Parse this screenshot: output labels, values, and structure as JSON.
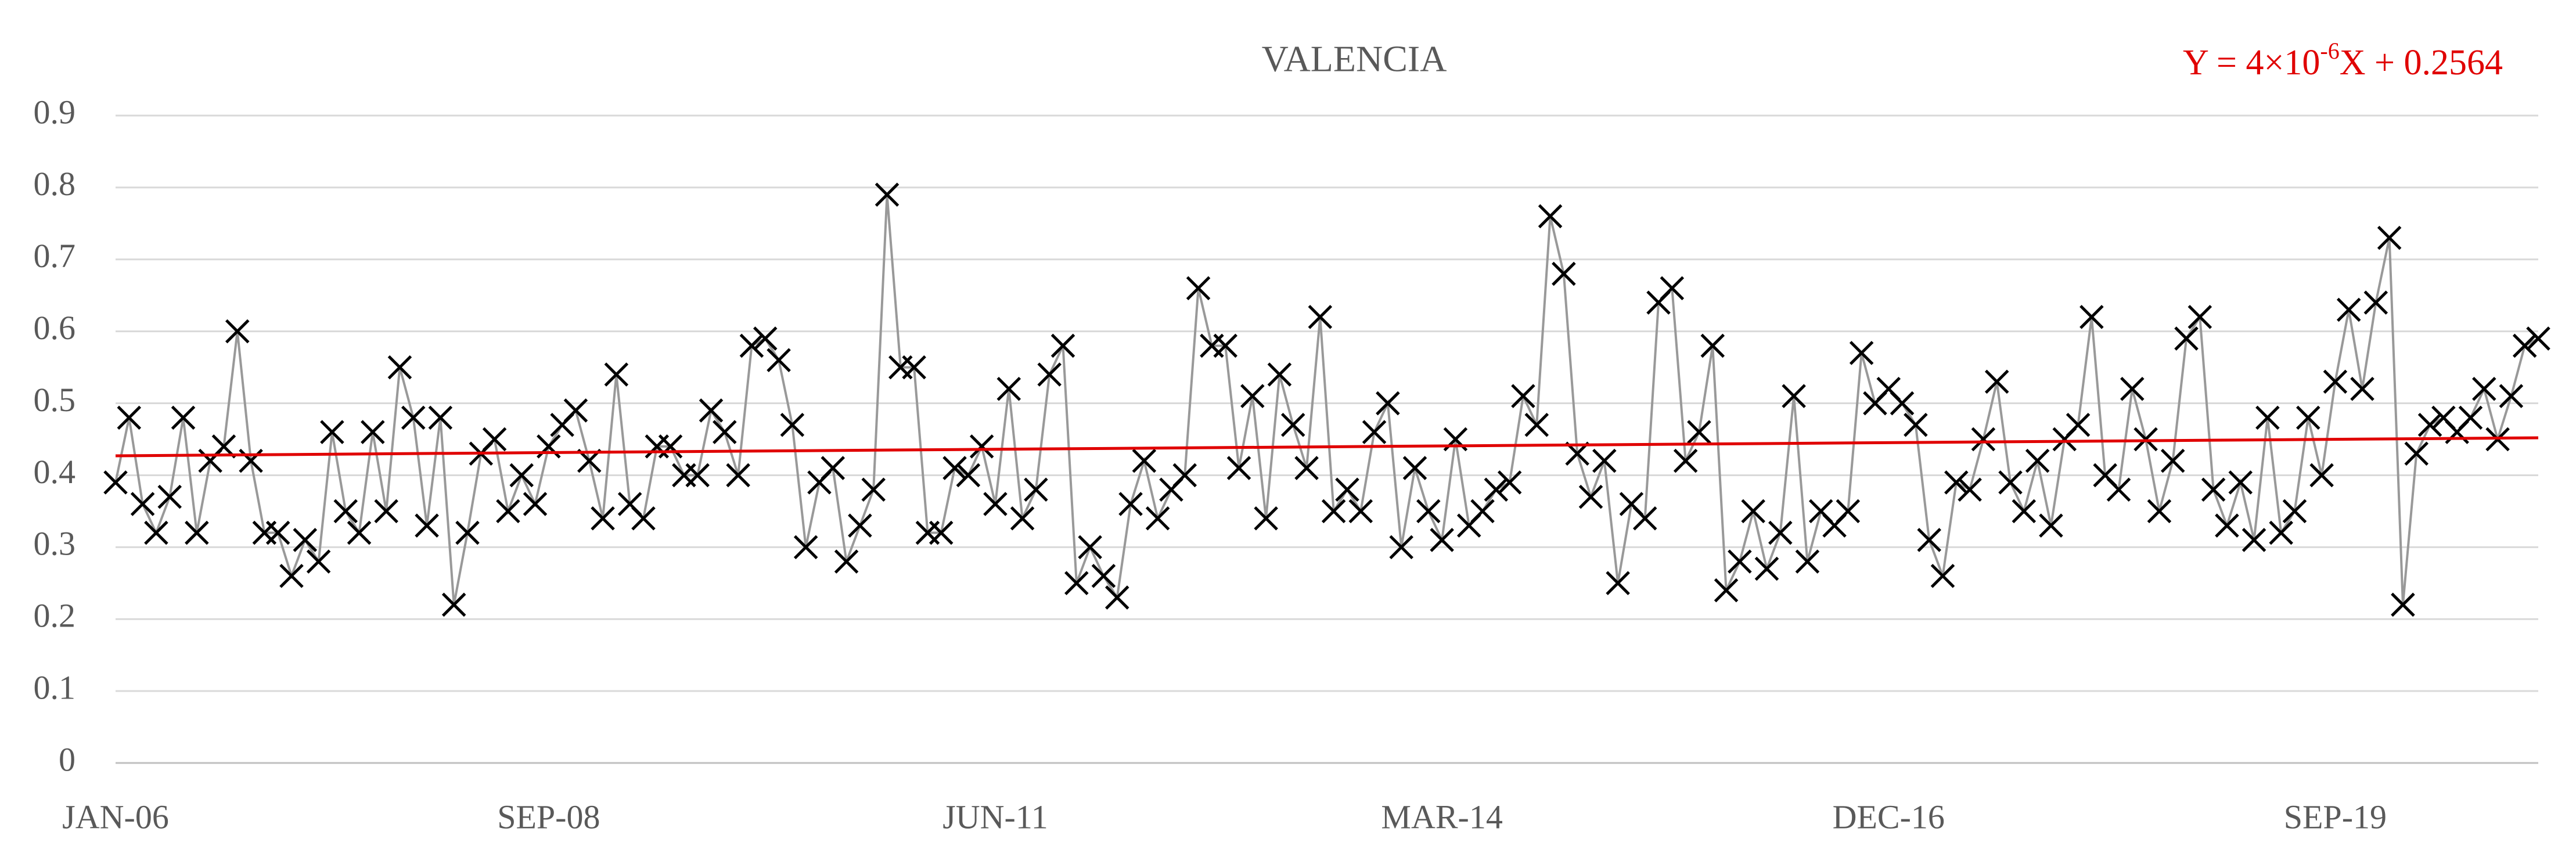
{
  "chart_data": {
    "type": "line",
    "title": "VALENCIA",
    "categories": [
      "JAN-06",
      null,
      null,
      null,
      null,
      null,
      null,
      null,
      null,
      null,
      null,
      null,
      null,
      null,
      null,
      null,
      null,
      null,
      null,
      null,
      null,
      null,
      null,
      null,
      null,
      null,
      null,
      null,
      null,
      null,
      null,
      null,
      "SEP-08",
      null,
      null,
      null,
      null,
      null,
      null,
      null,
      null,
      null,
      null,
      null,
      null,
      null,
      null,
      null,
      null,
      null,
      null,
      null,
      null,
      null,
      null,
      null,
      null,
      null,
      null,
      null,
      null,
      null,
      null,
      null,
      null,
      "JUN-11",
      null,
      null,
      null,
      null,
      null,
      null,
      null,
      null,
      null,
      null,
      null,
      null,
      null,
      null,
      null,
      null,
      null,
      null,
      null,
      null,
      null,
      null,
      null,
      null,
      null,
      null,
      null,
      null,
      null,
      null,
      null,
      null,
      "MAR-14",
      null,
      null,
      null,
      null,
      null,
      null,
      null,
      null,
      null,
      null,
      null,
      null,
      null,
      null,
      null,
      null,
      null,
      null,
      null,
      null,
      null,
      null,
      null,
      null,
      null,
      null,
      null,
      null,
      null,
      null,
      null,
      null,
      "DEC-16",
      null,
      null,
      null,
      null,
      null,
      null,
      null,
      null,
      null,
      null,
      null,
      null,
      null,
      null,
      null,
      null,
      null,
      null,
      null,
      null,
      null,
      null,
      null,
      null,
      null,
      null,
      null,
      null,
      null,
      null,
      null,
      null,
      "SEP-19",
      null,
      null,
      null,
      null,
      null,
      null,
      null,
      null,
      null,
      null,
      null,
      null,
      null,
      null,
      null
    ],
    "series": [
      {
        "color": "#999999",
        "marker_color": "#000000",
        "values": [
          0.39,
          0.48,
          0.36,
          0.32,
          0.37,
          0.48,
          0.32,
          0.42,
          0.44,
          0.6,
          0.42,
          0.32,
          0.32,
          0.26,
          0.31,
          0.28,
          0.46,
          0.35,
          0.32,
          0.46,
          0.35,
          0.55,
          0.48,
          0.33,
          0.48,
          0.22,
          0.32,
          0.43,
          0.45,
          0.35,
          0.4,
          0.36,
          0.44,
          0.47,
          0.49,
          0.42,
          0.34,
          0.54,
          0.36,
          0.34,
          0.44,
          0.44,
          0.4,
          0.4,
          0.49,
          0.46,
          0.4,
          0.58,
          0.59,
          0.56,
          0.47,
          0.3,
          0.39,
          0.41,
          0.28,
          0.33,
          0.38,
          0.79,
          0.55,
          0.55,
          0.32,
          0.32,
          0.41,
          0.4,
          0.44,
          0.36,
          0.52,
          0.34,
          0.38,
          0.54,
          0.58,
          0.25,
          0.3,
          0.26,
          0.23,
          0.36,
          0.42,
          0.34,
          0.38,
          0.4,
          0.66,
          0.58,
          0.58,
          0.41,
          0.51,
          0.34,
          0.54,
          0.47,
          0.41,
          0.62,
          0.35,
          0.38,
          0.35,
          0.46,
          0.5,
          0.3,
          0.41,
          0.35,
          0.31,
          0.45,
          0.33,
          0.35,
          0.38,
          0.39,
          0.51,
          0.47,
          0.76,
          0.68,
          0.43,
          0.37,
          0.42,
          0.25,
          0.36,
          0.34,
          0.64,
          0.66,
          0.42,
          0.46,
          0.58,
          0.24,
          0.28,
          0.35,
          0.27,
          0.32,
          0.51,
          0.28,
          0.35,
          0.33,
          0.35,
          0.57,
          0.5,
          0.52,
          0.5,
          0.47,
          0.31,
          0.26,
          0.39,
          0.38,
          0.45,
          0.53,
          0.39,
          0.35,
          0.42,
          0.33,
          0.45,
          0.47,
          0.62,
          0.4,
          0.38,
          0.52,
          0.45,
          0.35,
          0.42,
          0.59,
          0.62,
          0.38,
          0.33,
          0.39,
          0.31,
          0.48,
          0.32,
          0.35,
          0.48,
          0.4,
          0.53,
          0.63,
          0.52,
          0.64,
          0.73,
          0.22,
          0.43,
          0.47,
          0.48,
          0.46,
          0.48,
          0.52,
          0.45,
          0.51,
          0.58,
          0.59
        ]
      }
    ],
    "trendline": {
      "color": "#e00000",
      "values": [
        0.427,
        0.452
      ],
      "equation": [
        "Y = 4×10",
        "-6",
        "X + 0.2564"
      ]
    },
    "ylim": [
      0,
      0.9
    ],
    "yticks": [
      0,
      0.1,
      0.2,
      0.3,
      0.4,
      0.5,
      0.6,
      0.7,
      0.8,
      0.9
    ],
    "grid": true
  }
}
